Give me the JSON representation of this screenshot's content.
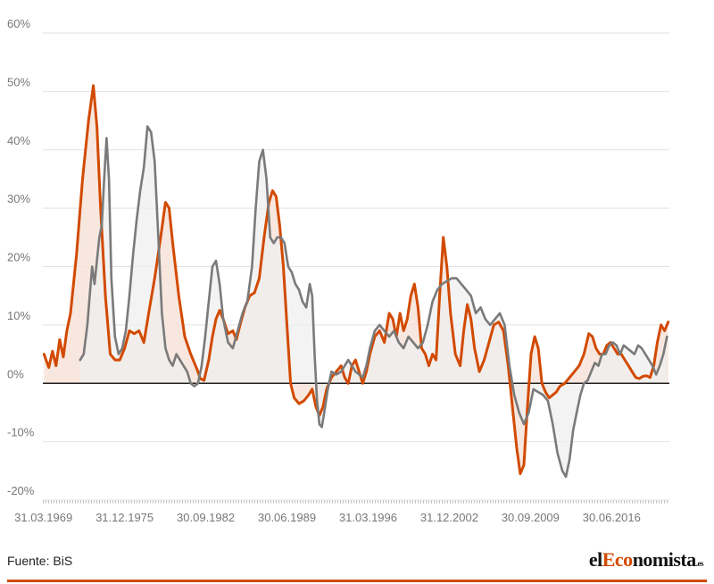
{
  "chart_data": {
    "type": "line",
    "ylim": [
      -20,
      60
    ],
    "y_ticks": [
      -20,
      -10,
      0,
      10,
      20,
      30,
      40,
      50,
      60
    ],
    "y_tick_labels": [
      "-20%",
      "-10%",
      "0%",
      "10%",
      "20%",
      "30%",
      "40%",
      "50%",
      "60%"
    ],
    "xlim": [
      1969.2,
      2021.3
    ],
    "x_ticks": [
      1969.25,
      1976.0,
      1982.75,
      1989.5,
      1996.25,
      2003.0,
      2009.75,
      2016.5
    ],
    "x_tick_labels": [
      "31.03.1969",
      "31.12.1975",
      "30.09.1982",
      "30.06.1989",
      "31.03.1996",
      "31.12.2002",
      "30.09.2009",
      "30.06.2016"
    ],
    "grid": true,
    "series": [
      {
        "color": "#d24a00",
        "fill": "#f6e3d9",
        "points": [
          [
            1969.3,
            5
          ],
          [
            1969.7,
            2.7
          ],
          [
            1970.0,
            5.5
          ],
          [
            1970.3,
            3
          ],
          [
            1970.6,
            7.5
          ],
          [
            1970.9,
            4.5
          ],
          [
            1971.2,
            9
          ],
          [
            1971.5,
            12
          ],
          [
            1972.0,
            22
          ],
          [
            1972.5,
            35
          ],
          [
            1973.0,
            45
          ],
          [
            1973.4,
            51
          ],
          [
            1973.7,
            44
          ],
          [
            1974.0,
            30
          ],
          [
            1974.4,
            15
          ],
          [
            1974.8,
            5
          ],
          [
            1975.2,
            4
          ],
          [
            1975.6,
            4
          ],
          [
            1976.0,
            6
          ],
          [
            1976.4,
            9
          ],
          [
            1976.8,
            8.5
          ],
          [
            1977.2,
            9
          ],
          [
            1977.6,
            7
          ],
          [
            1978.0,
            12
          ],
          [
            1978.5,
            18
          ],
          [
            1979.0,
            25
          ],
          [
            1979.4,
            31
          ],
          [
            1979.7,
            30
          ],
          [
            1980.0,
            24
          ],
          [
            1980.5,
            15
          ],
          [
            1981.0,
            8
          ],
          [
            1981.5,
            5
          ],
          [
            1982.0,
            2.5
          ],
          [
            1982.3,
            0.8
          ],
          [
            1982.6,
            0.5
          ],
          [
            1983.0,
            4
          ],
          [
            1983.3,
            8
          ],
          [
            1983.6,
            11
          ],
          [
            1983.9,
            12.5
          ],
          [
            1984.2,
            11
          ],
          [
            1984.6,
            8.5
          ],
          [
            1985.0,
            9
          ],
          [
            1985.3,
            7.5
          ],
          [
            1985.6,
            10
          ],
          [
            1986.0,
            13
          ],
          [
            1986.4,
            15
          ],
          [
            1986.8,
            15.5
          ],
          [
            1987.2,
            18
          ],
          [
            1987.6,
            25
          ],
          [
            1988.0,
            31
          ],
          [
            1988.3,
            33
          ],
          [
            1988.6,
            32
          ],
          [
            1988.9,
            27
          ],
          [
            1989.2,
            20
          ],
          [
            1989.5,
            10
          ],
          [
            1989.8,
            0
          ],
          [
            1990.1,
            -2.5
          ],
          [
            1990.5,
            -3.5
          ],
          [
            1990.9,
            -3
          ],
          [
            1991.3,
            -2
          ],
          [
            1991.6,
            -1
          ],
          [
            1991.9,
            -4
          ],
          [
            1992.2,
            -5.5
          ],
          [
            1992.5,
            -4
          ],
          [
            1992.8,
            -1
          ],
          [
            1993.2,
            1
          ],
          [
            1993.6,
            2
          ],
          [
            1994.0,
            3
          ],
          [
            1994.3,
            1
          ],
          [
            1994.6,
            0
          ],
          [
            1994.9,
            3
          ],
          [
            1995.2,
            4
          ],
          [
            1995.5,
            2
          ],
          [
            1995.8,
            0
          ],
          [
            1996.1,
            2
          ],
          [
            1996.4,
            5
          ],
          [
            1996.8,
            8
          ],
          [
            1997.2,
            9
          ],
          [
            1997.6,
            7
          ],
          [
            1998.0,
            12
          ],
          [
            1998.3,
            11
          ],
          [
            1998.6,
            8
          ],
          [
            1998.9,
            12
          ],
          [
            1999.2,
            9
          ],
          [
            1999.5,
            11
          ],
          [
            1999.8,
            15
          ],
          [
            2000.1,
            17
          ],
          [
            2000.4,
            13
          ],
          [
            2000.7,
            6
          ],
          [
            2001.0,
            5
          ],
          [
            2001.3,
            3
          ],
          [
            2001.6,
            5
          ],
          [
            2001.9,
            4
          ],
          [
            2002.2,
            15
          ],
          [
            2002.5,
            25
          ],
          [
            2002.8,
            20
          ],
          [
            2003.1,
            12
          ],
          [
            2003.5,
            5
          ],
          [
            2003.9,
            3
          ],
          [
            2004.2,
            9
          ],
          [
            2004.5,
            13.5
          ],
          [
            2004.8,
            11
          ],
          [
            2005.1,
            6
          ],
          [
            2005.5,
            2
          ],
          [
            2005.9,
            4
          ],
          [
            2006.3,
            7
          ],
          [
            2006.7,
            10
          ],
          [
            2007.1,
            10.5
          ],
          [
            2007.5,
            9
          ],
          [
            2007.9,
            3
          ],
          [
            2008.3,
            -5
          ],
          [
            2008.6,
            -11
          ],
          [
            2008.9,
            -15.5
          ],
          [
            2009.2,
            -14
          ],
          [
            2009.5,
            -4
          ],
          [
            2009.8,
            5
          ],
          [
            2010.1,
            8
          ],
          [
            2010.4,
            6
          ],
          [
            2010.7,
            0
          ],
          [
            2011.0,
            -1.5
          ],
          [
            2011.3,
            -2.5
          ],
          [
            2011.6,
            -2
          ],
          [
            2011.9,
            -1.5
          ],
          [
            2012.2,
            -0.5
          ],
          [
            2012.6,
            0
          ],
          [
            2013.0,
            1
          ],
          [
            2013.4,
            2
          ],
          [
            2013.8,
            3
          ],
          [
            2014.2,
            5
          ],
          [
            2014.6,
            8.5
          ],
          [
            2014.9,
            8
          ],
          [
            2015.2,
            6
          ],
          [
            2015.5,
            5
          ],
          [
            2015.8,
            5
          ],
          [
            2016.1,
            6.5
          ],
          [
            2016.4,
            7
          ],
          [
            2016.7,
            6
          ],
          [
            2017.0,
            5
          ],
          [
            2017.3,
            5
          ],
          [
            2017.6,
            4
          ],
          [
            2017.9,
            3
          ],
          [
            2018.2,
            2
          ],
          [
            2018.5,
            1
          ],
          [
            2018.8,
            0.8
          ],
          [
            2019.1,
            1.2
          ],
          [
            2019.4,
            1.3
          ],
          [
            2019.7,
            1
          ],
          [
            2020.0,
            3
          ],
          [
            2020.3,
            7
          ],
          [
            2020.6,
            10
          ],
          [
            2020.9,
            9
          ],
          [
            2021.2,
            10.5
          ]
        ]
      },
      {
        "color": "#7a7a7a",
        "fill": "#efefef",
        "points": [
          [
            1972.3,
            4
          ],
          [
            1972.6,
            5
          ],
          [
            1972.9,
            10
          ],
          [
            1973.1,
            15
          ],
          [
            1973.3,
            20
          ],
          [
            1973.5,
            17
          ],
          [
            1973.7,
            21
          ],
          [
            1973.9,
            25
          ],
          [
            1974.1,
            27
          ],
          [
            1974.3,
            35
          ],
          [
            1974.5,
            42
          ],
          [
            1974.7,
            35
          ],
          [
            1974.9,
            18
          ],
          [
            1975.2,
            8
          ],
          [
            1975.5,
            5
          ],
          [
            1975.8,
            6
          ],
          [
            1976.1,
            9
          ],
          [
            1976.4,
            15
          ],
          [
            1976.7,
            22
          ],
          [
            1977.0,
            28
          ],
          [
            1977.3,
            33
          ],
          [
            1977.6,
            37
          ],
          [
            1977.9,
            44
          ],
          [
            1978.2,
            43
          ],
          [
            1978.5,
            38
          ],
          [
            1978.8,
            25
          ],
          [
            1979.1,
            12
          ],
          [
            1979.4,
            6
          ],
          [
            1979.7,
            4
          ],
          [
            1980.0,
            3
          ],
          [
            1980.3,
            5
          ],
          [
            1980.6,
            4
          ],
          [
            1980.9,
            3
          ],
          [
            1981.2,
            2
          ],
          [
            1981.5,
            0
          ],
          [
            1981.8,
            -0.5
          ],
          [
            1982.1,
            0
          ],
          [
            1982.4,
            3
          ],
          [
            1982.7,
            8
          ],
          [
            1983.0,
            14
          ],
          [
            1983.3,
            20
          ],
          [
            1983.6,
            21
          ],
          [
            1983.9,
            17
          ],
          [
            1984.2,
            11
          ],
          [
            1984.6,
            7
          ],
          [
            1985.0,
            6
          ],
          [
            1985.4,
            9
          ],
          [
            1985.8,
            12
          ],
          [
            1986.2,
            14
          ],
          [
            1986.6,
            20
          ],
          [
            1986.9,
            30
          ],
          [
            1987.2,
            38
          ],
          [
            1987.5,
            40
          ],
          [
            1987.8,
            35
          ],
          [
            1988.1,
            25
          ],
          [
            1988.4,
            24
          ],
          [
            1988.7,
            25
          ],
          [
            1989.0,
            25
          ],
          [
            1989.3,
            24
          ],
          [
            1989.6,
            20
          ],
          [
            1989.9,
            19
          ],
          [
            1990.2,
            17
          ],
          [
            1990.5,
            16
          ],
          [
            1990.8,
            14
          ],
          [
            1991.1,
            13
          ],
          [
            1991.4,
            17
          ],
          [
            1991.6,
            15
          ],
          [
            1991.8,
            5
          ],
          [
            1992.0,
            -3
          ],
          [
            1992.2,
            -7
          ],
          [
            1992.4,
            -7.5
          ],
          [
            1992.6,
            -5
          ],
          [
            1992.9,
            -1
          ],
          [
            1993.2,
            2
          ],
          [
            1993.6,
            1.5
          ],
          [
            1994.0,
            2
          ],
          [
            1994.3,
            3
          ],
          [
            1994.6,
            4
          ],
          [
            1994.9,
            3
          ],
          [
            1995.2,
            2
          ],
          [
            1995.5,
            1.5
          ],
          [
            1995.8,
            1
          ],
          [
            1996.1,
            3
          ],
          [
            1996.4,
            6
          ],
          [
            1996.8,
            9
          ],
          [
            1997.2,
            10
          ],
          [
            1997.6,
            9
          ],
          [
            1998.0,
            8
          ],
          [
            1998.4,
            9
          ],
          [
            1998.8,
            7
          ],
          [
            1999.2,
            6
          ],
          [
            1999.6,
            8
          ],
          [
            2000.0,
            7
          ],
          [
            2000.4,
            6
          ],
          [
            2000.8,
            7
          ],
          [
            2001.2,
            10
          ],
          [
            2001.6,
            14
          ],
          [
            2002.0,
            16
          ],
          [
            2002.4,
            17
          ],
          [
            2002.8,
            17.5
          ],
          [
            2003.2,
            18
          ],
          [
            2003.6,
            18
          ],
          [
            2004.0,
            17
          ],
          [
            2004.4,
            16
          ],
          [
            2004.8,
            15
          ],
          [
            2005.2,
            12
          ],
          [
            2005.6,
            13
          ],
          [
            2006.0,
            11
          ],
          [
            2006.4,
            10
          ],
          [
            2006.8,
            11
          ],
          [
            2007.2,
            12
          ],
          [
            2007.6,
            10
          ],
          [
            2008.0,
            3
          ],
          [
            2008.4,
            -2
          ],
          [
            2008.8,
            -5
          ],
          [
            2009.2,
            -7
          ],
          [
            2009.6,
            -5
          ],
          [
            2010.0,
            -1
          ],
          [
            2010.4,
            -1.5
          ],
          [
            2010.8,
            -2
          ],
          [
            2011.2,
            -3
          ],
          [
            2011.6,
            -7
          ],
          [
            2012.0,
            -12
          ],
          [
            2012.4,
            -15
          ],
          [
            2012.7,
            -16
          ],
          [
            2013.0,
            -13
          ],
          [
            2013.3,
            -8
          ],
          [
            2013.6,
            -5
          ],
          [
            2013.9,
            -2
          ],
          [
            2014.2,
            0
          ],
          [
            2014.5,
            0.5
          ],
          [
            2014.8,
            2
          ],
          [
            2015.1,
            3.5
          ],
          [
            2015.4,
            3
          ],
          [
            2015.7,
            5
          ],
          [
            2016.0,
            5
          ],
          [
            2016.3,
            6.5
          ],
          [
            2016.6,
            7
          ],
          [
            2016.9,
            6.5
          ],
          [
            2017.2,
            5
          ],
          [
            2017.5,
            6.5
          ],
          [
            2017.8,
            6
          ],
          [
            2018.1,
            5.5
          ],
          [
            2018.4,
            5
          ],
          [
            2018.7,
            6.5
          ],
          [
            2019.0,
            6
          ],
          [
            2019.3,
            5
          ],
          [
            2019.6,
            4
          ],
          [
            2019.9,
            3
          ],
          [
            2020.2,
            1.5
          ],
          [
            2020.5,
            3
          ],
          [
            2020.8,
            5
          ],
          [
            2021.1,
            8
          ]
        ]
      }
    ]
  },
  "footer": {
    "source": "Fuente: BiS",
    "logo_prefix": "el",
    "logo_accent": "Eco",
    "logo_main": "nomista",
    "logo_suffix": ".es"
  }
}
